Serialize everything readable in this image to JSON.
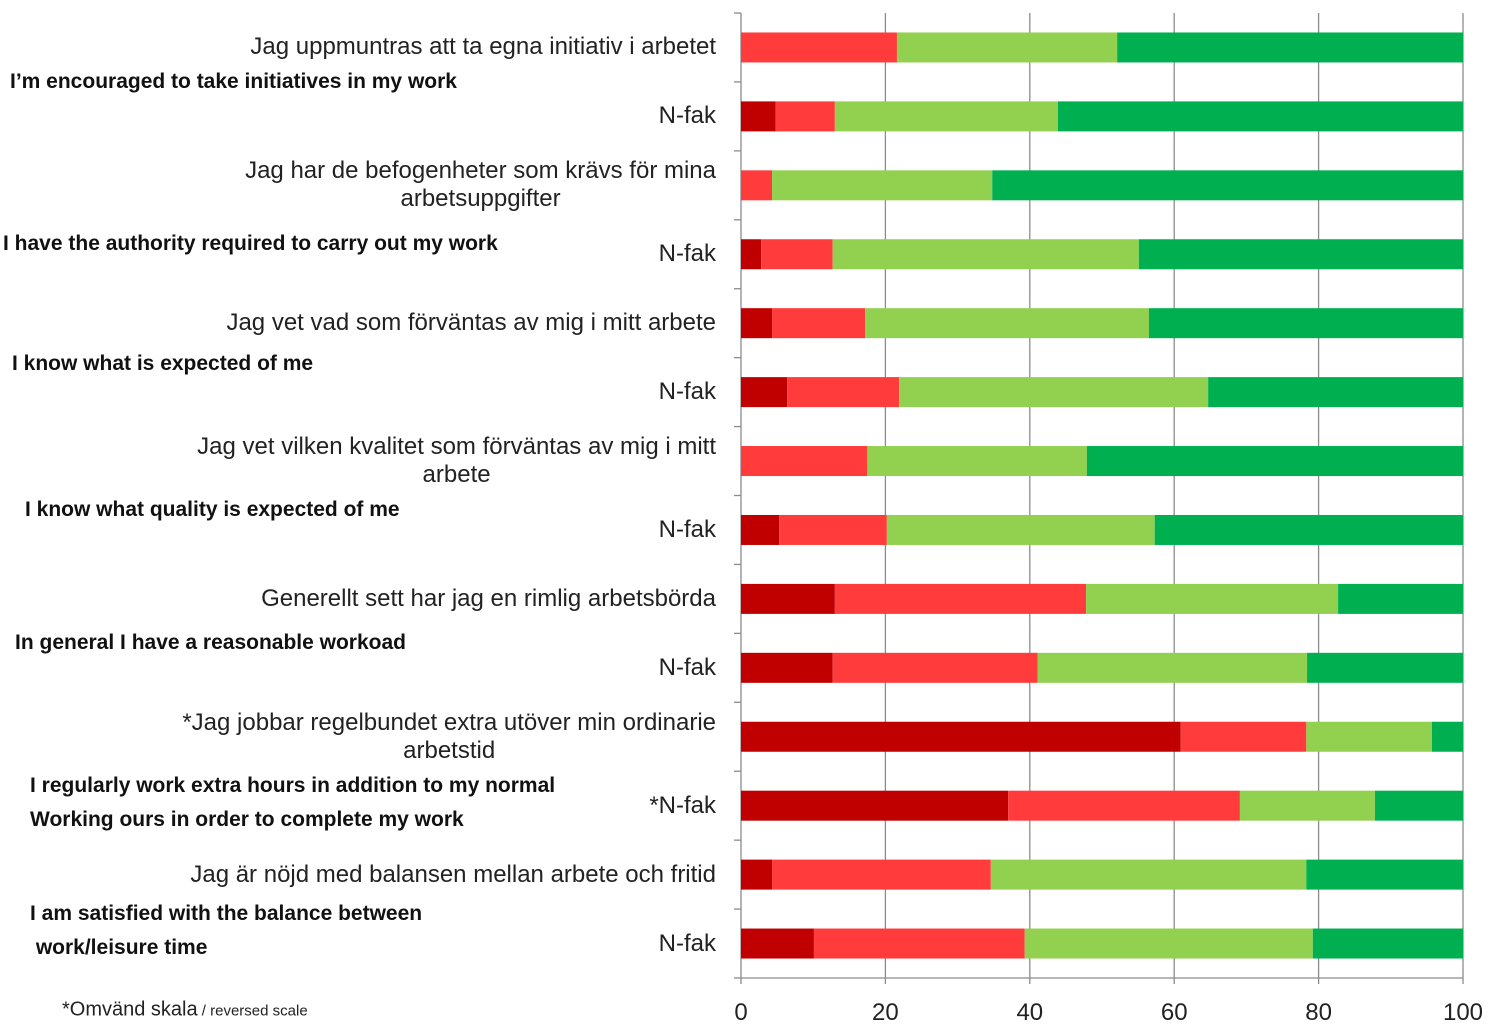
{
  "chart_data": {
    "type": "stacked-barh",
    "categories": [
      "Jag uppmuntras att ta egna initiativ i arbetet",
      "N-fak",
      "Jag har de befogenheter som krävs för mina\narbetsuppgifter",
      "N-fak",
      "Jag vet vad som förväntas av mig i mitt arbete",
      "N-fak",
      "Jag vet vilken kvalitet som förväntas av mig i mitt\narbete",
      "N-fak",
      "Generellt sett har jag en rimlig arbetsbörda",
      "N-fak",
      "*Jag jobbar regelbundet extra utöver min ordinarie\narbetstid",
      "*N-fak",
      "Jag är nöjd med balansen mellan arbete och fritid",
      "N-fak"
    ],
    "series": [
      {
        "color": "#c00000",
        "values": [
          0,
          4.8,
          0,
          2.8,
          4.3,
          6.4,
          0,
          5.3,
          13.0,
          12.7,
          60.9,
          37.0,
          4.3,
          10.1
        ]
      },
      {
        "color": "#ff3b3b",
        "values": [
          21.6,
          8.2,
          4.3,
          9.9,
          12.9,
          15.5,
          17.5,
          14.9,
          34.8,
          28.4,
          17.4,
          32.1,
          30.3,
          29.2
        ]
      },
      {
        "color": "#92d050",
        "values": [
          30.5,
          30.9,
          30.5,
          42.4,
          39.3,
          42.8,
          30.4,
          37.1,
          34.9,
          37.3,
          17.4,
          18.7,
          43.7,
          39.9
        ]
      },
      {
        "color": "#00b050",
        "values": [
          47.9,
          56.1,
          65.2,
          44.9,
          43.5,
          35.3,
          52.1,
          42.7,
          17.3,
          21.6,
          4.3,
          12.2,
          21.7,
          20.8
        ]
      }
    ],
    "xlim": [
      0,
      100
    ],
    "xticks": [
      0,
      20,
      40,
      60,
      80,
      100
    ],
    "grid": true,
    "annotations": [
      "I’m encouraged to take initiatives in my work",
      "I have the authority required to carry out my work",
      "I know what is expected of me",
      "I know what quality is expected of me",
      "In general I have a reasonable workoad",
      "I regularly work extra hours in addition to my normal\nWorking ours in order to complete my work",
      "I am satisfied with the balance between\n work/leisure time"
    ],
    "footnote": [
      "*Omvänd skala",
      " / reversed scale"
    ]
  }
}
